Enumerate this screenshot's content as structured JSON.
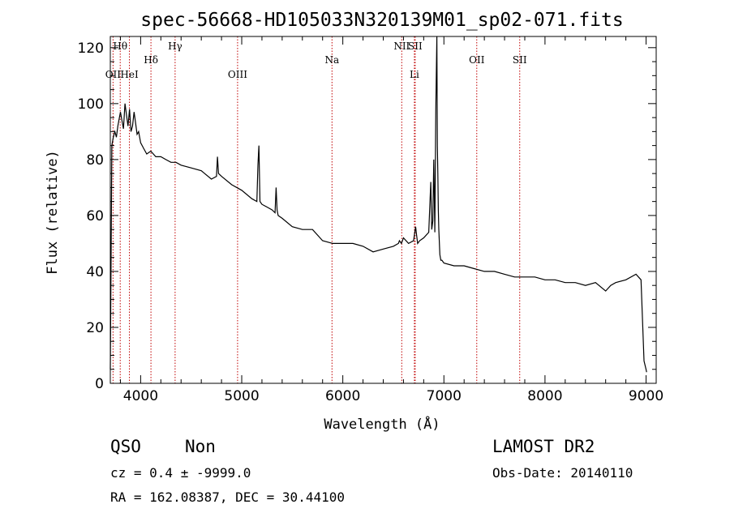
{
  "chart_data": {
    "type": "line",
    "title": "spec-56668-HD105033N320139M01_sp02-071.fits",
    "xlabel": "Wavelength (Å)",
    "ylabel": "Flux (relative)",
    "xlim": [
      3700,
      9100
    ],
    "ylim": [
      0,
      124
    ],
    "x_ticks": [
      4000,
      5000,
      6000,
      7000,
      8000,
      9000
    ],
    "y_ticks": [
      0,
      20,
      40,
      60,
      80,
      100,
      120
    ],
    "grid": false,
    "line_color": "#000000",
    "marker_color": "#c00000",
    "reference_lines": [
      {
        "label": "Hθ",
        "x": 3798,
        "row": 0
      },
      {
        "label": "OII",
        "x": 3727,
        "row": 2
      },
      {
        "label": "HeI",
        "x": 3889,
        "row": 2
      },
      {
        "label": "Hδ",
        "x": 4102,
        "row": 1
      },
      {
        "label": "Hγ",
        "x": 4341,
        "row": 0
      },
      {
        "label": "OIII",
        "x": 4959,
        "row": 2
      },
      {
        "label": "Na",
        "x": 5893,
        "row": 1
      },
      {
        "label": "NII",
        "x": 6583,
        "row": 0
      },
      {
        "label": "SII",
        "x": 6716,
        "row": 0
      },
      {
        "label": "Li",
        "x": 6708,
        "row": 2
      },
      {
        "label": "OII",
        "x": 7325,
        "row": 1
      },
      {
        "label": "SII",
        "x": 7750,
        "row": 1
      }
    ],
    "series": [
      {
        "x": [
          3700,
          3715,
          3730,
          3745,
          3760,
          3775,
          3790,
          3800,
          3815,
          3830,
          3845,
          3860,
          3875,
          3890,
          3905,
          3920,
          3935,
          3950,
          3965,
          3980,
          4000,
          4030,
          4060,
          4100,
          4150,
          4200,
          4250,
          4300,
          4350,
          4400,
          4500,
          4600,
          4700,
          4750,
          4760,
          4770,
          4800,
          4900,
          5000,
          5100,
          5150,
          5160,
          5170,
          5180,
          5200,
          5250,
          5300,
          5330,
          5340,
          5350,
          5360,
          5400,
          5500,
          5600,
          5700,
          5800,
          5900,
          6000,
          6100,
          6200,
          6300,
          6400,
          6500,
          6550,
          6560,
          6580,
          6600,
          6650,
          6700,
          6720,
          6730,
          6740,
          6760,
          6800,
          6850,
          6870,
          6880,
          6890,
          6900,
          6910,
          6920,
          6925,
          6930,
          6935,
          6940,
          6945,
          6950,
          6960,
          6970,
          6980,
          7000,
          7100,
          7200,
          7300,
          7400,
          7500,
          7600,
          7700,
          7800,
          7900,
          8000,
          8100,
          8200,
          8300,
          8400,
          8500,
          8600,
          8650,
          8700,
          8800,
          8900,
          8950,
          8980,
          9000,
          9005
        ],
        "y": [
          5,
          85,
          88,
          90,
          88,
          92,
          95,
          97,
          94,
          91,
          100,
          96,
          92,
          98,
          90,
          92,
          97,
          93,
          89,
          90,
          86,
          84,
          82,
          83,
          81,
          81,
          80,
          79,
          79,
          78,
          77,
          76,
          73,
          74,
          81,
          75,
          74,
          71,
          69,
          66,
          65,
          78,
          85,
          65,
          64,
          63,
          62,
          61,
          70,
          62,
          60,
          59,
          56,
          55,
          55,
          51,
          50,
          50,
          50,
          49,
          47,
          48,
          49,
          50,
          51,
          50,
          52,
          50,
          51,
          56,
          53,
          50,
          51,
          52,
          54,
          72,
          55,
          58,
          80,
          54,
          98,
          110,
          124,
          85,
          75,
          62,
          55,
          46,
          44,
          44,
          43,
          42,
          42,
          41,
          40,
          40,
          39,
          38,
          38,
          38,
          37,
          37,
          36,
          36,
          35,
          36,
          33,
          35,
          36,
          37,
          39,
          37,
          8,
          5,
          4
        ]
      }
    ]
  },
  "footer": {
    "class_label": "QSO",
    "subclass_label": "Non",
    "survey": "LAMOST DR2",
    "cz_text": "cz = 0.4 ± -9999.0",
    "obs_date": "Obs-Date: 20140110",
    "coords": "RA = 162.08387, DEC =  30.44100"
  }
}
